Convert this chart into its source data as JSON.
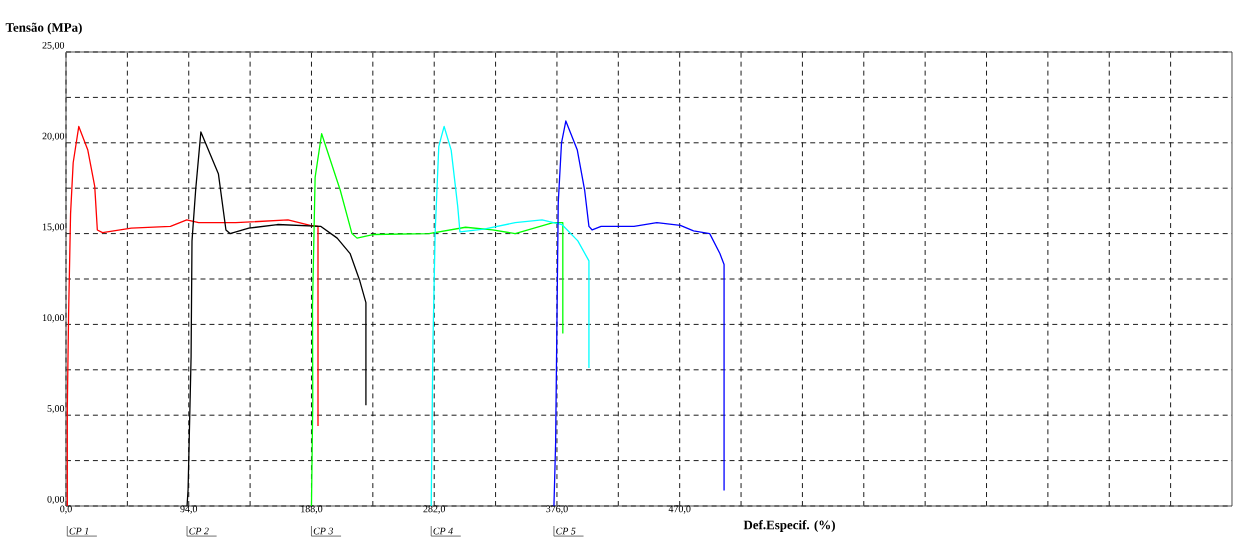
{
  "chart_data": {
    "type": "line",
    "ylabel": "Tensão (MPa)",
    "xlabel": "Def.Especif. (%)",
    "xlim": [
      0,
      893
    ],
    "ylim": [
      0,
      25
    ],
    "xticks": [
      {
        "value": 0,
        "label": "0,0"
      },
      {
        "value": 47,
        "label": null
      },
      {
        "value": 94,
        "label": "94,0"
      },
      {
        "value": 141,
        "label": null
      },
      {
        "value": 188,
        "label": "188,0"
      },
      {
        "value": 235,
        "label": null
      },
      {
        "value": 282,
        "label": "282,0"
      },
      {
        "value": 329,
        "label": null
      },
      {
        "value": 376,
        "label": "376,0"
      },
      {
        "value": 423,
        "label": null
      },
      {
        "value": 470,
        "label": "470,0"
      },
      {
        "value": 517,
        "label": null
      },
      {
        "value": 564,
        "label": null
      },
      {
        "value": 611,
        "label": null
      },
      {
        "value": 658,
        "label": null
      },
      {
        "value": 705,
        "label": null
      },
      {
        "value": 752,
        "label": null
      },
      {
        "value": 799,
        "label": null
      },
      {
        "value": 846,
        "label": null
      }
    ],
    "yticks": [
      {
        "value": 0,
        "label": "0,00"
      },
      {
        "value": 2.5,
        "label": null
      },
      {
        "value": 5,
        "label": "5,00"
      },
      {
        "value": 7.5,
        "label": null
      },
      {
        "value": 10,
        "label": "10,00"
      },
      {
        "value": 12.5,
        "label": null
      },
      {
        "value": 15,
        "label": "15,00"
      },
      {
        "value": 17.5,
        "label": null
      },
      {
        "value": 20,
        "label": "20,00"
      },
      {
        "value": 22.5,
        "label": null
      },
      {
        "value": 25,
        "label": "25,00"
      }
    ],
    "grid": true,
    "legend": false,
    "marker": "none",
    "line_style": "solid",
    "series": [
      {
        "name": "CP 1",
        "color": "#ff0000",
        "x": [
          1.0,
          1.0,
          2.0,
          3.5,
          5.5,
          9.8,
          16.7,
          22,
          24,
          28,
          50,
          80,
          92.5,
          101.6,
          130,
          170,
          187,
          193,
          193
        ],
        "values": [
          0,
          5.4,
          10.6,
          16.1,
          18.9,
          20.9,
          19.6,
          17.6,
          15.2,
          15.05,
          15.3,
          15.4,
          15.75,
          15.6,
          15.6,
          15.75,
          15.45,
          15.4,
          4.4
        ]
      },
      {
        "name": "CP 2",
        "color": "#000000",
        "x": [
          92.7,
          93.5,
          95.8,
          96.5,
          99.3,
          103.3,
          116.7,
          122.5,
          125.6,
          140,
          162,
          195,
          207.7,
          217.6,
          225,
          229.7,
          229.7
        ],
        "values": [
          0,
          0.9,
          8.2,
          14.6,
          17.4,
          20.6,
          18.3,
          15.2,
          15.0,
          15.3,
          15.5,
          15.4,
          14.75,
          13.9,
          12.4,
          11.2,
          5.55
        ]
      },
      {
        "name": "CP 3",
        "color": "#00ff00",
        "x": [
          188,
          189,
          188.8,
          190.8,
          195.8,
          210,
          219,
          222.9,
          235,
          278,
          306,
          326.7,
          344,
          373,
          380.5,
          380.5
        ],
        "values": [
          0,
          5.8,
          11,
          18.1,
          20.5,
          17.4,
          15.0,
          14.75,
          14.95,
          15.0,
          15.35,
          15.2,
          15.0,
          15.6,
          15.6,
          9.5
        ]
      },
      {
        "name": "CP 4",
        "color": "#00ffff",
        "x": [
          279.7,
          281,
          282.7,
          285.5,
          289.6,
          295,
          300,
          301.7,
          320,
          344,
          364.6,
          379.8,
          392,
          400.5,
          400.5
        ],
        "values": [
          0,
          8.85,
          15.0,
          19.8,
          20.9,
          19.6,
          16.5,
          15.1,
          15.25,
          15.6,
          15.75,
          15.5,
          14.6,
          13.5,
          7.6
        ]
      },
      {
        "name": "CP 5",
        "color": "#0000ff",
        "x": [
          373.7,
          375,
          376.2,
          377,
          379.5,
          382.8,
          391.6,
          397.2,
          400.5,
          403,
          409.8,
          435,
          452.5,
          470.5,
          480.6,
          493,
          500.8,
          504,
          504
        ],
        "values": [
          0,
          3.5,
          11.5,
          16.7,
          20,
          21.2,
          19.6,
          17.4,
          15.4,
          15.2,
          15.4,
          15.4,
          15.6,
          15.45,
          15.15,
          15.0,
          13.9,
          13.3,
          0.85
        ]
      }
    ]
  }
}
